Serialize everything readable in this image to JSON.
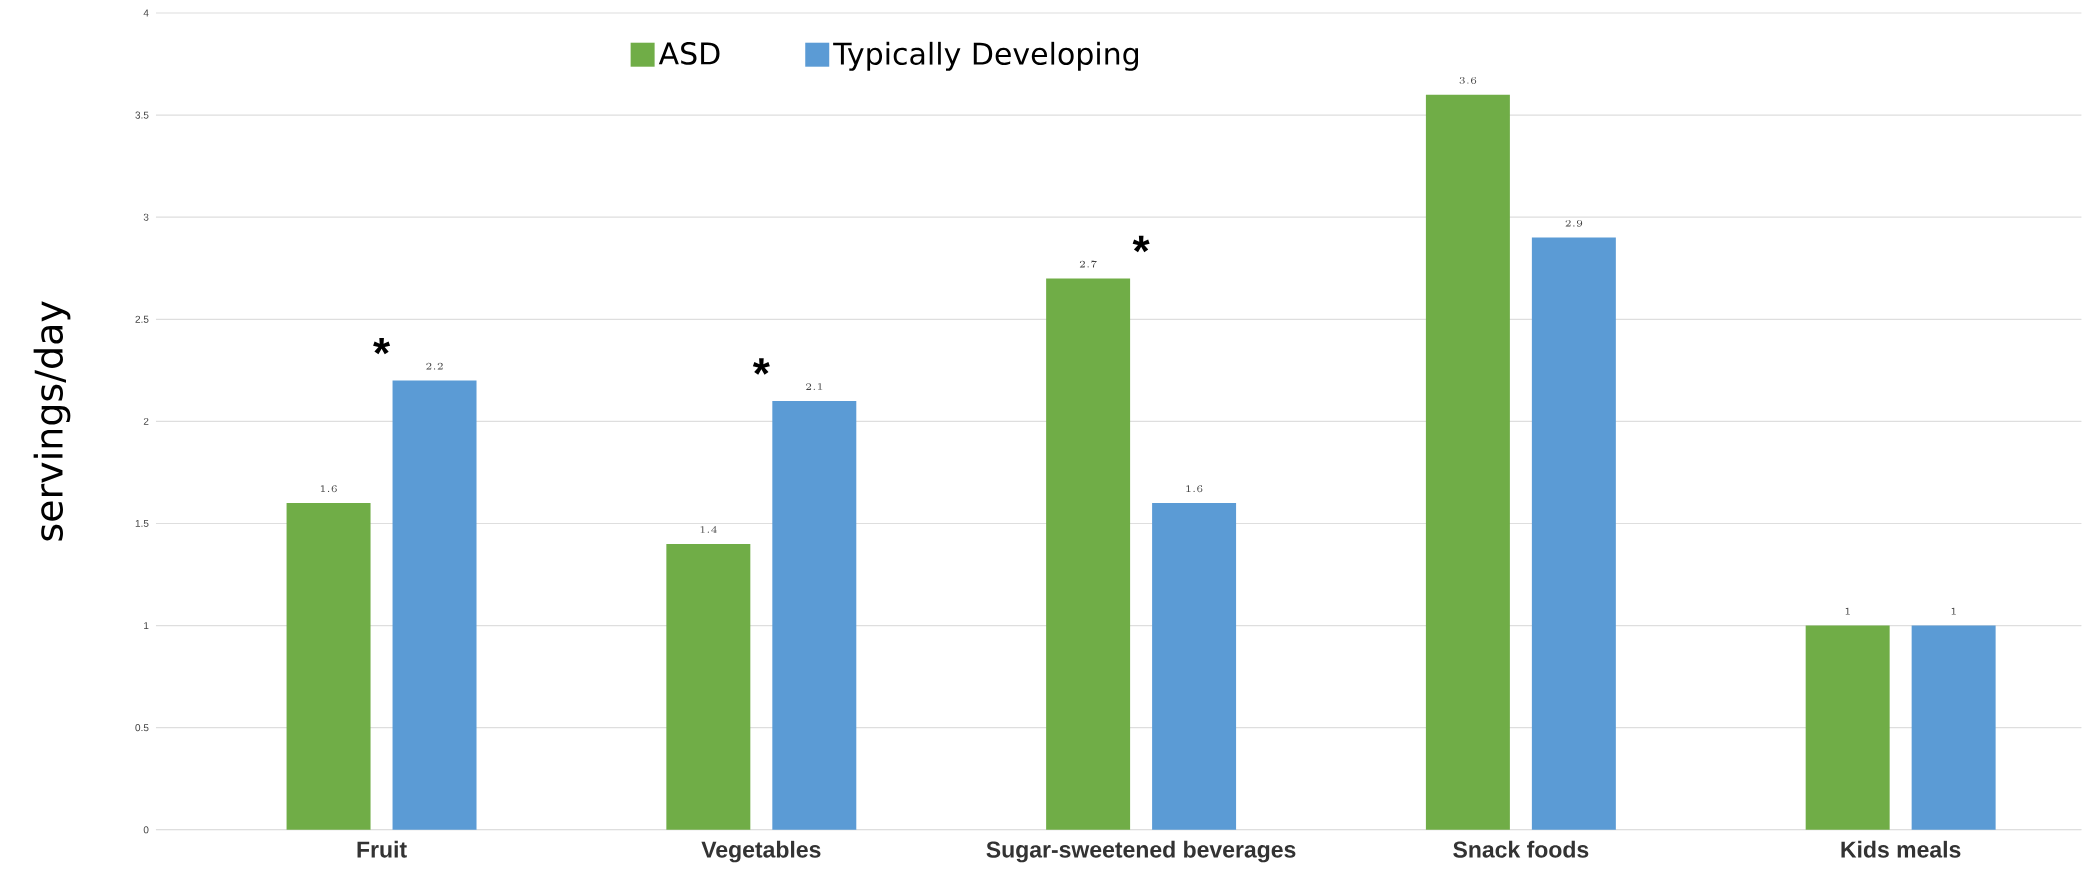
{
  "chart_data": {
    "type": "bar",
    "ylabel": "servings/day",
    "categories": [
      "Fruit",
      "Vegetables",
      "Sugar-sweetened beverages",
      "Snack foods",
      "Kids meals"
    ],
    "series": [
      {
        "name": "ASD",
        "color": "#70ad47",
        "values": [
          1.6,
          1.4,
          2.7,
          3.6,
          1
        ]
      },
      {
        "name": "Typically Developing",
        "color": "#5b9bd5",
        "values": [
          2.2,
          2.1,
          1.6,
          2.9,
          1
        ]
      }
    ],
    "ylim": [
      0,
      4
    ],
    "yticks": [
      0,
      0.5,
      1,
      1.5,
      2,
      2.5,
      3,
      3.5,
      4
    ],
    "grid": "y",
    "legend": "top",
    "data_labels": true,
    "annotations": [
      "*",
      "*",
      "*"
    ]
  }
}
